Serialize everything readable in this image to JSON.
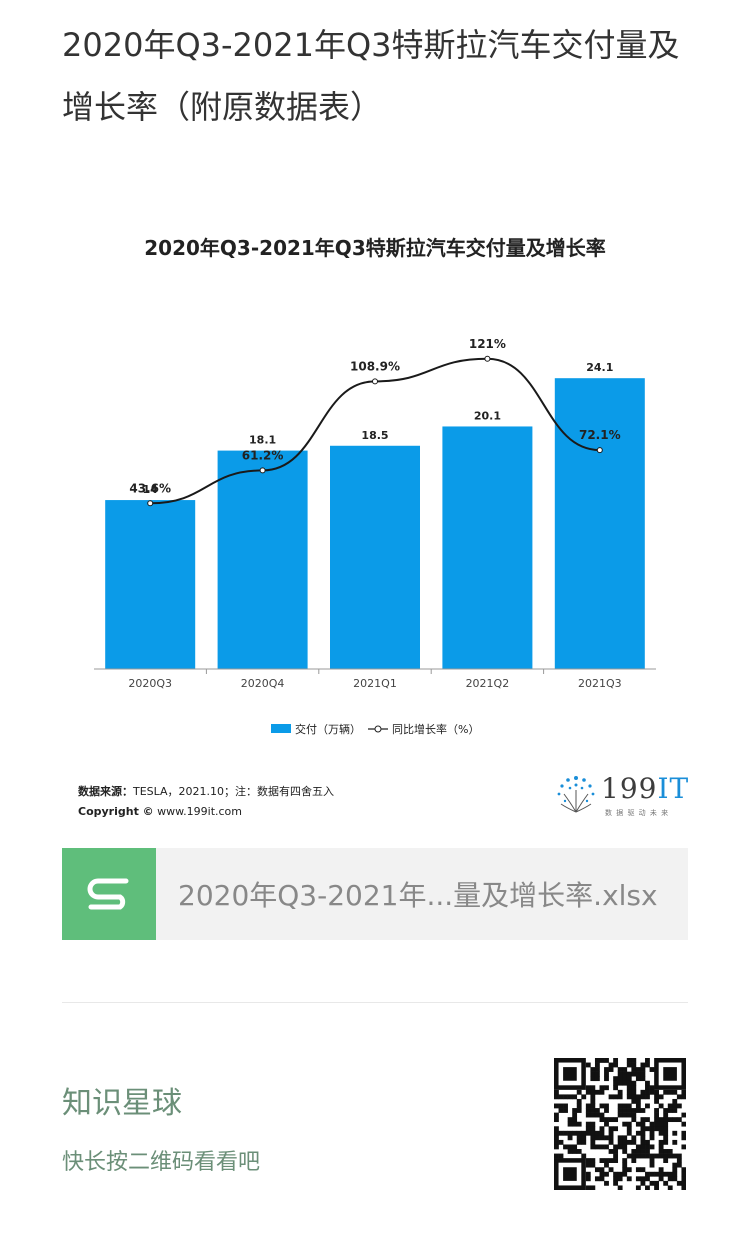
{
  "article": {
    "title": "2020年Q3-2021年Q3特斯拉汽车交付量及增长率（附原数据表）"
  },
  "chart_data": {
    "type": "bar",
    "title": "2020年Q3-2021年Q3特斯拉汽车交付量及增长率",
    "categories": [
      "2020Q3",
      "2020Q4",
      "2021Q1",
      "2021Q2",
      "2021Q3"
    ],
    "series": [
      {
        "name": "交付（万辆）",
        "type": "bar",
        "values": [
          14,
          18.1,
          18.5,
          20.1,
          24.1
        ],
        "labels": [
          "14",
          "18.1",
          "18.5",
          "20.1",
          "24.1"
        ],
        "color": "#0b9be8"
      },
      {
        "name": "同比增长率（%）",
        "type": "line",
        "values": [
          43.6,
          61.2,
          108.9,
          121,
          72.1
        ],
        "labels": [
          "43.6%",
          "61.2%",
          "108.9%",
          "121%",
          "72.1%"
        ],
        "color": "#1a1a1a"
      }
    ],
    "legend": "bottom",
    "grid": false
  },
  "source": {
    "label": "数据来源：",
    "text": "TESLA，2021.10；注：数据有四舍五入",
    "copyright": "Copyright ©",
    "site": "www.199it.com"
  },
  "brand": {
    "name_digits": "199",
    "name_letters": "IT",
    "tagline": "数 据 驱 动 未 来"
  },
  "file": {
    "name": "2020年Q3-2021年...量及增长率.xlsx",
    "icon": "spreadsheet-s-icon"
  },
  "promo": {
    "title": "知识星球",
    "subtitle": "快长按二维码看看吧",
    "qr_icon": "qr-code-icon"
  },
  "colors": {
    "bar": "#0b9be8",
    "file_icon_bg": "#5fbe7b",
    "promo_text": "#6b8f78"
  }
}
